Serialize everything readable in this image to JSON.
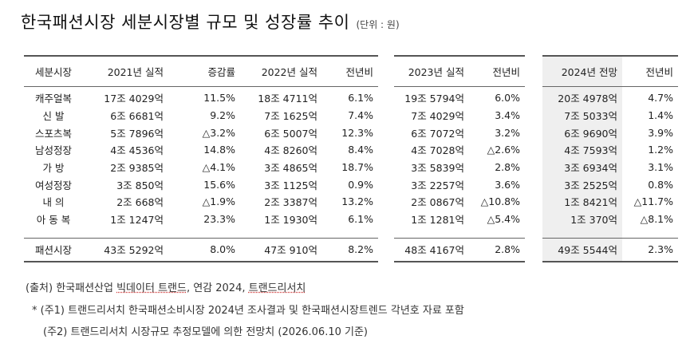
{
  "title": "한국패션시장 세분시장별 규모 및 성장률 추이",
  "unit": "(단위 : 원)",
  "segments": [
    "캐주얼복",
    "신 발",
    "스포츠복",
    "남성정장",
    "가 방",
    "여성정장",
    "내 의",
    "아 동 복"
  ],
  "total_label": "패션시장",
  "segment_header": "세분시장",
  "years": [
    {
      "val_header": "2021년 실적",
      "rate_header": "증감률",
      "values": [
        "17조 4029억",
        "6조 6681억",
        "5조 7896억",
        "4조 4536억",
        "2조 9385억",
        "3조 850억",
        "2조 668억",
        "1조 1247억"
      ],
      "rates": [
        "11.5%",
        "9.2%",
        "△3.2%",
        "14.8%",
        "△4.1%",
        "15.6%",
        "△1.9%",
        "23.3%"
      ],
      "total_value": "43조 5292억",
      "total_rate": "8.0%"
    },
    {
      "val_header": "2022년 실적",
      "rate_header": "전년비",
      "values": [
        "18조 4711억",
        "7조 1625억",
        "6조 5007억",
        "4조 8260억",
        "3조 4865억",
        "3조 1125억",
        "2조 3387억",
        "1조 1930억"
      ],
      "rates": [
        "6.1%",
        "7.4%",
        "12.3%",
        "8.4%",
        "18.7%",
        "0.9%",
        "13.2%",
        "6.1%"
      ],
      "total_value": "47조 910억",
      "total_rate": "8.2%"
    },
    {
      "val_header": "2023년 실적",
      "rate_header": "전년비",
      "values": [
        "19조 5794억",
        "7조 4029억",
        "6조 7072억",
        "4조 7028억",
        "3조 5839억",
        "3조 2257억",
        "2조 0867억",
        "1조 1281억"
      ],
      "rates": [
        "6.0%",
        "3.4%",
        "3.2%",
        "△2.6%",
        "2.8%",
        "3.6%",
        "△10.8%",
        "△5.4%"
      ],
      "total_value": "48조 4167억",
      "total_rate": "2.8%"
    },
    {
      "val_header": "2024년 전망",
      "rate_header": "전년비",
      "values": [
        "20조 4978억",
        "7조 5033억",
        "6조 9690억",
        "4조 7593억",
        "3조 6934억",
        "3조 2525억",
        "1조 8421억",
        "1조 370억"
      ],
      "rates": [
        "4.7%",
        "1.4%",
        "3.9%",
        "1.2%",
        "3.1%",
        "0.8%",
        "△11.7%",
        "△8.1%"
      ],
      "total_value": "49조 5544억",
      "total_rate": "2.3%"
    }
  ],
  "footer": {
    "source_prefix": "(출처) 한국패션산업 ",
    "source_underlined": "빅데이터 트랜드",
    "source_mid": ", 연감 2024, ",
    "source_underlined2": "트랜드리서치",
    "note1": "* (주1) 트랜드리서치 한국패션소비시장 2024년 조사결과 및 한국패션시장트렌드 각년호 자료 포함",
    "note2": "(주2) 트랜드리서치 시장규모 추정모델에 의한 전망치 (2026.06.10 기준)"
  }
}
